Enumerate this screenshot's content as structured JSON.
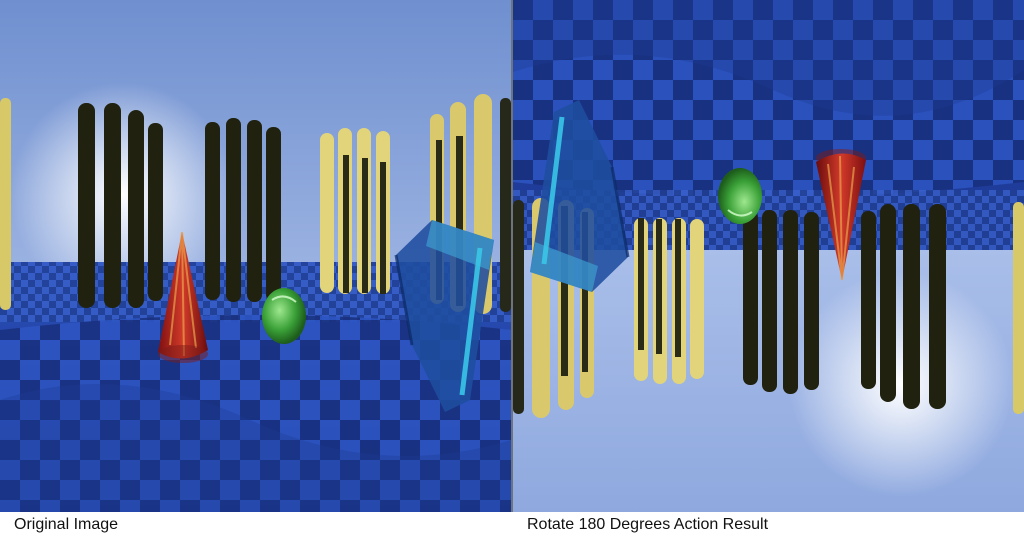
{
  "captions": {
    "original": "Original Image",
    "rotated": "Rotate 180 Degrees Action Result"
  },
  "palette": {
    "sky_top": "#6f8fcf",
    "sky_bottom": "#b9cbef",
    "floor_dark": "#11246b",
    "floor_light": "#2f57c4",
    "pillar_dark": "#1f2211",
    "pillar_yellow": "#e0d070",
    "cone_red": "#b31c1c",
    "egg_green": "#3fae3c",
    "glass_blue": "#1f4d9f",
    "glass_edge": "#39c6e8",
    "divider": "#6d7480"
  },
  "scene_objects": [
    "dark-pillars",
    "yellow-pillars",
    "red-cone",
    "green-egg",
    "glass-prism",
    "checkered-floor",
    "sky-glow"
  ]
}
